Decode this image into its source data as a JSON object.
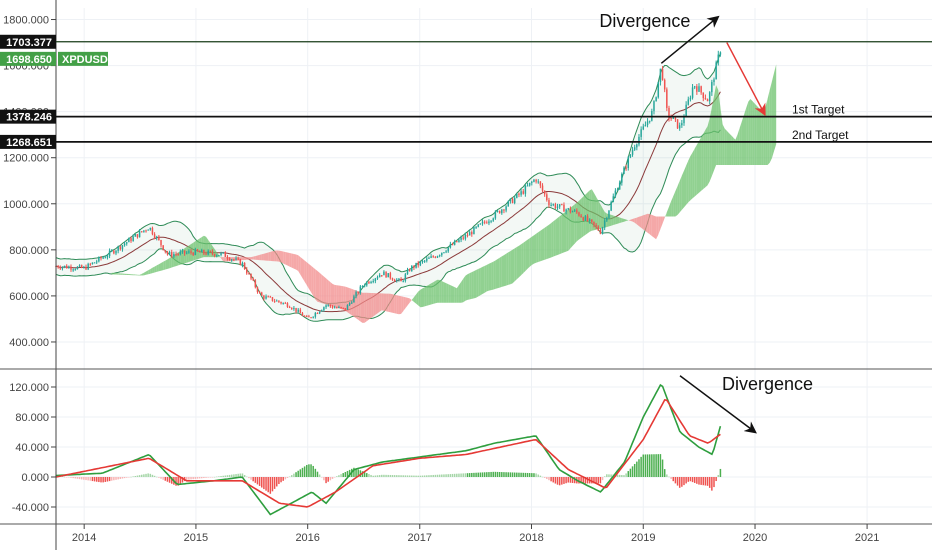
{
  "chart_data": [
    {
      "type": "candlestick",
      "symbol": "XPDUSD",
      "x_axis": {
        "range": [
          "2013-10-01",
          "2021-08-01"
        ],
        "ticks": [
          "2014",
          "2015",
          "2016",
          "2017",
          "2018",
          "2019",
          "2020",
          "2021"
        ]
      },
      "y_axis": {
        "range": [
          300,
          1850
        ],
        "ticks": [
          "400.000",
          "600.000",
          "800.000",
          "1000.000",
          "1200.000",
          "1400.000",
          "1600.000",
          "1800.000"
        ]
      },
      "price_path": [
        [
          "2013-10-01",
          730
        ],
        [
          "2014-01-01",
          720
        ],
        [
          "2014-04-01",
          790
        ],
        [
          "2014-08-01",
          900
        ],
        [
          "2014-10-01",
          780
        ],
        [
          "2015-01-01",
          790
        ],
        [
          "2015-04-01",
          780
        ],
        [
          "2015-06-01",
          740
        ],
        [
          "2015-08-01",
          600
        ],
        [
          "2015-11-01",
          560
        ],
        [
          "2016-01-01",
          500
        ],
        [
          "2016-03-01",
          560
        ],
        [
          "2016-05-01",
          540
        ],
        [
          "2016-07-01",
          650
        ],
        [
          "2016-09-01",
          700
        ],
        [
          "2016-11-01",
          660
        ],
        [
          "2016-12-01",
          720
        ],
        [
          "2017-03-01",
          780
        ],
        [
          "2017-06-01",
          860
        ],
        [
          "2017-09-01",
          950
        ],
        [
          "2017-12-01",
          1050
        ],
        [
          "2018-01-15",
          1110
        ],
        [
          "2018-03-01",
          1000
        ],
        [
          "2018-06-01",
          960
        ],
        [
          "2018-08-15",
          880
        ],
        [
          "2018-10-01",
          1050
        ],
        [
          "2018-12-01",
          1250
        ],
        [
          "2019-02-01",
          1400
        ],
        [
          "2019-03-01",
          1600
        ],
        [
          "2019-03-20",
          1390
        ],
        [
          "2019-05-01",
          1330
        ],
        [
          "2019-06-15",
          1520
        ],
        [
          "2019-08-01",
          1450
        ],
        [
          "2019-09-15",
          1700
        ]
      ],
      "horizontal_levels": [
        {
          "label": "1703.377",
          "value": 1703.377
        },
        {
          "label": "1378.246",
          "value": 1378.246,
          "annotation": "1st Target"
        },
        {
          "label": "1268.651",
          "value": 1268.651,
          "annotation": "2nd Target"
        }
      ],
      "last_price": {
        "label": "1698.650",
        "value": 1698.65,
        "symbol": "XPDUSD"
      },
      "annotations": [
        {
          "text": "Divergence",
          "kind": "arrow-up",
          "from": [
            "2019-03-01",
            1610
          ],
          "to": [
            "2019-09-01",
            1810
          ]
        },
        {
          "kind": "arrow-down",
          "from": [
            "2019-10-01",
            1700
          ],
          "to": [
            "2020-02-01",
            1390
          ]
        }
      ],
      "colors": {
        "up": "#26a69a",
        "down": "#ef5350",
        "bollinger": "#2e8b57",
        "ichimoku_bull": "#6cc26c",
        "ichimoku_bear": "#f28b8b"
      }
    },
    {
      "type": "macd",
      "y_axis": {
        "range": [
          -60,
          140
        ],
        "ticks": [
          "-40.000",
          "0.000",
          "40.000",
          "80.000",
          "120.000"
        ]
      },
      "macd_path": [
        [
          "2013-10-01",
          2
        ],
        [
          "2014-03-01",
          5
        ],
        [
          "2014-08-01",
          30
        ],
        [
          "2014-11-01",
          -10
        ],
        [
          "2015-03-01",
          -5
        ],
        [
          "2015-06-01",
          0
        ],
        [
          "2015-09-01",
          -50
        ],
        [
          "2015-12-01",
          -30
        ],
        [
          "2016-01-15",
          -20
        ],
        [
          "2016-03-01",
          -35
        ],
        [
          "2016-06-01",
          10
        ],
        [
          "2016-09-01",
          20
        ],
        [
          "2016-12-01",
          25
        ],
        [
          "2017-03-01",
          30
        ],
        [
          "2017-06-01",
          35
        ],
        [
          "2017-09-01",
          45
        ],
        [
          "2018-01-15",
          55
        ],
        [
          "2018-04-01",
          10
        ],
        [
          "2018-06-01",
          -5
        ],
        [
          "2018-08-15",
          -20
        ],
        [
          "2018-11-01",
          20
        ],
        [
          "2019-01-01",
          80
        ],
        [
          "2019-03-01",
          125
        ],
        [
          "2019-05-01",
          60
        ],
        [
          "2019-07-01",
          40
        ],
        [
          "2019-08-15",
          30
        ],
        [
          "2019-09-15",
          75
        ]
      ],
      "signal_path": [
        [
          "2013-10-01",
          0
        ],
        [
          "2014-08-01",
          25
        ],
        [
          "2014-12-01",
          -5
        ],
        [
          "2015-06-01",
          -5
        ],
        [
          "2015-10-01",
          -35
        ],
        [
          "2016-01-01",
          -40
        ],
        [
          "2016-04-01",
          -20
        ],
        [
          "2016-08-01",
          15
        ],
        [
          "2017-01-01",
          25
        ],
        [
          "2017-06-01",
          30
        ],
        [
          "2018-01-15",
          50
        ],
        [
          "2018-05-01",
          10
        ],
        [
          "2018-09-01",
          -15
        ],
        [
          "2019-01-01",
          50
        ],
        [
          "2019-03-15",
          105
        ],
        [
          "2019-06-01",
          55
        ],
        [
          "2019-08-01",
          45
        ],
        [
          "2019-09-20",
          60
        ]
      ],
      "annotations": [
        {
          "text": "Divergence",
          "kind": "arrow-down",
          "from": [
            "2019-05-01",
            135
          ],
          "to": [
            "2020-01-01",
            60
          ]
        }
      ]
    }
  ]
}
